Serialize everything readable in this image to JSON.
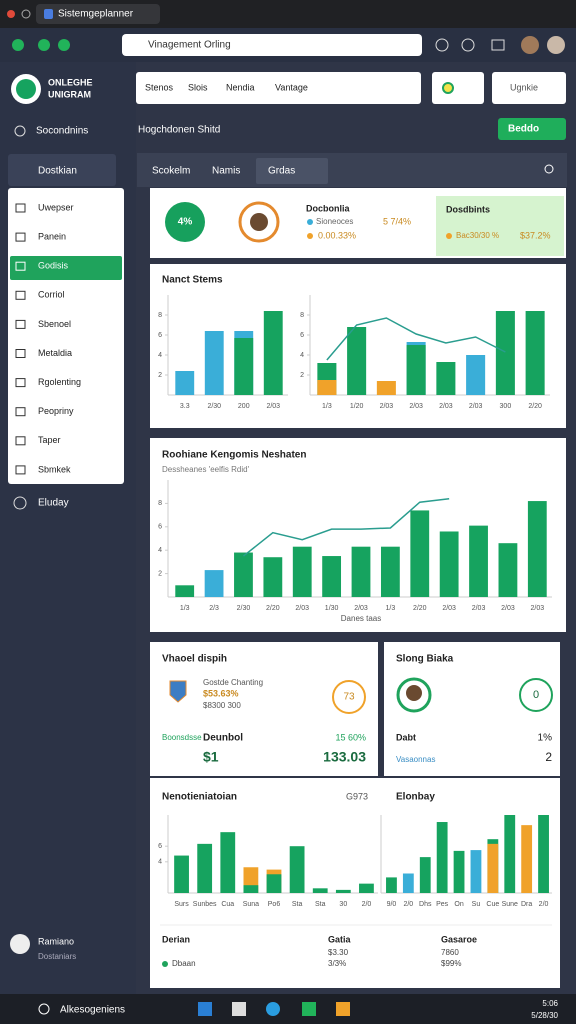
{
  "browser": {
    "tab": "Sistemgeplanner",
    "url": "Vinagement Orling"
  },
  "sidebar": {
    "brand_line1": "ONLEGHE",
    "brand_line2": "UNIGRAM",
    "top_item": "Socondnins",
    "section": "Dostkian",
    "menu": [
      "Uwepser",
      "Panein",
      "Godisis",
      "Corriol",
      "Sbenoel",
      "Metaldia",
      "Rgolenting",
      "Peopriny",
      "Taper",
      "Sbmkek"
    ],
    "bottom_item": "Eluday",
    "user_name": "Ramiano",
    "user_role": "Dostaniars"
  },
  "toolbar": {
    "tabs": [
      "Stenos",
      "Slois",
      "Nendia",
      "Vantage"
    ],
    "search": "Ugnkie",
    "breadcrumb": "Hogchdonen Shitd",
    "action": "Beddo"
  },
  "subtabs": [
    "Scokelm",
    "Namis",
    "Grdas"
  ],
  "summary": {
    "badge": "4%",
    "title": "Docbonlia",
    "row1_label": "Sioneoces",
    "row1_value": "5 7/4%",
    "row2_label": "0.00.33%",
    "highlight_title": "Dosdbints",
    "highlight_label": "Bac30/30 %",
    "highlight_value": "$37.2%"
  },
  "cards": {
    "stems_title": "Nanct Stems",
    "trend_title": "Roohiane Kengomis Neshaten",
    "trend_subtitle": "Dessheanes 'eelfis Rdid'",
    "vessel": {
      "title": "Vhaoel dispih",
      "caption": "Gostde Chanting",
      "value": "$53.63%",
      "sub": "$8300 300",
      "ring": "73",
      "row_label": "Boonsdsse",
      "row_title": "Deunbol",
      "row_pct": "15 60%",
      "big_left": "$1",
      "big_right": "133.03"
    },
    "slong": {
      "title": "Slong Biaka",
      "ring": "0",
      "row_label": "Dabt",
      "row_pct": "1%",
      "row2_label": "Vasaonnas",
      "row2_value": "2"
    },
    "bottom": {
      "left_title": "Nenotieniatoian",
      "left_note": "G973",
      "right_title": "Elonbay"
    },
    "table": {
      "headers": [
        "Derian",
        "Gatia",
        "Gasaroe"
      ],
      "rows": [
        [
          "",
          "$3.30",
          "7860"
        ],
        [
          "Dbaan",
          "3/3%",
          "$99%"
        ]
      ]
    }
  },
  "charts": [
    {
      "type": "bar",
      "categories": [
        "3.3",
        "2/30",
        "200",
        "2/03"
      ],
      "ylim": [
        0,
        10
      ],
      "yticks": [
        2,
        4,
        6,
        8
      ],
      "series": [
        {
          "color": "#3aaed8",
          "values": [
            2.4,
            6.4,
            6.4,
            0
          ]
        },
        {
          "color": "#16a35f",
          "values": [
            0,
            0,
            5.7,
            8.4
          ]
        }
      ]
    },
    {
      "type": "bar",
      "categories": [
        "1/3",
        "1/20",
        "2/03",
        "2/03",
        "2/03",
        "2/03",
        "300",
        "2/20"
      ],
      "ylim": [
        0,
        10
      ],
      "yticks": [
        2,
        4,
        6,
        8
      ],
      "series": [
        {
          "color": "#16a35f",
          "values": [
            3.2,
            6.8,
            0,
            5.0,
            3.3,
            0,
            8.4,
            8.4
          ]
        },
        {
          "color": "#f0a22a",
          "values": [
            1.5,
            0,
            1.4,
            0,
            0,
            0,
            0,
            0
          ]
        },
        {
          "color": "#3aaed8",
          "values": [
            0,
            0,
            0,
            5.3,
            0,
            4.0,
            0,
            0
          ]
        }
      ],
      "line": {
        "color": "#2a9d8f",
        "values": [
          3.5,
          7.0,
          7.7,
          6.1,
          5.2,
          5.8,
          4.3,
          null
        ]
      }
    },
    {
      "type": "bar",
      "categories": [
        "1/3",
        "2/3",
        "2/30",
        "2/20",
        "2/03",
        "1/30",
        "2/03",
        "1/3",
        "2/20",
        "2/03",
        "2/03",
        "2/03",
        "2/03"
      ],
      "ylim": [
        0,
        10
      ],
      "yticks": [
        2,
        4,
        6,
        8
      ],
      "xlabel": "Danes taas",
      "series": [
        {
          "color": "#16a35f",
          "values": [
            1.0,
            0,
            3.8,
            3.4,
            4.3,
            3.5,
            4.3,
            4.3,
            7.4,
            5.6,
            6.1,
            4.6,
            8.2
          ]
        },
        {
          "color": "#3aaed8",
          "values": [
            0,
            2.3,
            0,
            0,
            0,
            0,
            0,
            0,
            0,
            0,
            0,
            0,
            0
          ]
        }
      ],
      "line": {
        "color": "#2a9d8f",
        "values": [
          null,
          null,
          3.5,
          5.5,
          4.9,
          5.8,
          5.8,
          5.9,
          8.1,
          8.4,
          null,
          null,
          null
        ]
      }
    },
    {
      "type": "bar",
      "categories": [
        "Surs",
        "Sunbes",
        "Cua",
        "Suna",
        "Po6",
        "Sta",
        "Sta",
        "30",
        "2/0"
      ],
      "ylim": [
        0,
        10
      ],
      "yticks": [
        4,
        6
      ],
      "series": [
        {
          "color": "#16a35f",
          "values": [
            4.8,
            6.3,
            7.8,
            1.0,
            2.4,
            6.0,
            0.6,
            0.4,
            1.2
          ]
        },
        {
          "color": "#f0a22a",
          "values": [
            0,
            0,
            0,
            3.3,
            3.0,
            0,
            0,
            0,
            0
          ]
        }
      ]
    },
    {
      "type": "bar",
      "categories": [
        "9/0",
        "2/0",
        "Dhs",
        "Pes",
        "On",
        "Su",
        "Cue",
        "Sune",
        "Dra",
        "2/0"
      ],
      "ylim": [
        0,
        10
      ],
      "yticks": [],
      "series": [
        {
          "color": "#16a35f",
          "values": [
            2.0,
            0,
            4.6,
            9.1,
            5.4,
            0,
            6.9,
            10,
            0,
            10
          ]
        },
        {
          "color": "#3aaed8",
          "values": [
            0,
            2.5,
            0,
            0,
            0,
            5.5,
            0,
            0,
            0,
            0
          ]
        },
        {
          "color": "#f0a22a",
          "values": [
            0,
            0,
            0,
            0,
            0,
            0,
            6.3,
            0,
            8.7,
            0
          ]
        }
      ]
    }
  ],
  "taskbar": {
    "search": "Alkesogeniens",
    "time": "5:06",
    "date": "5/28/30"
  }
}
